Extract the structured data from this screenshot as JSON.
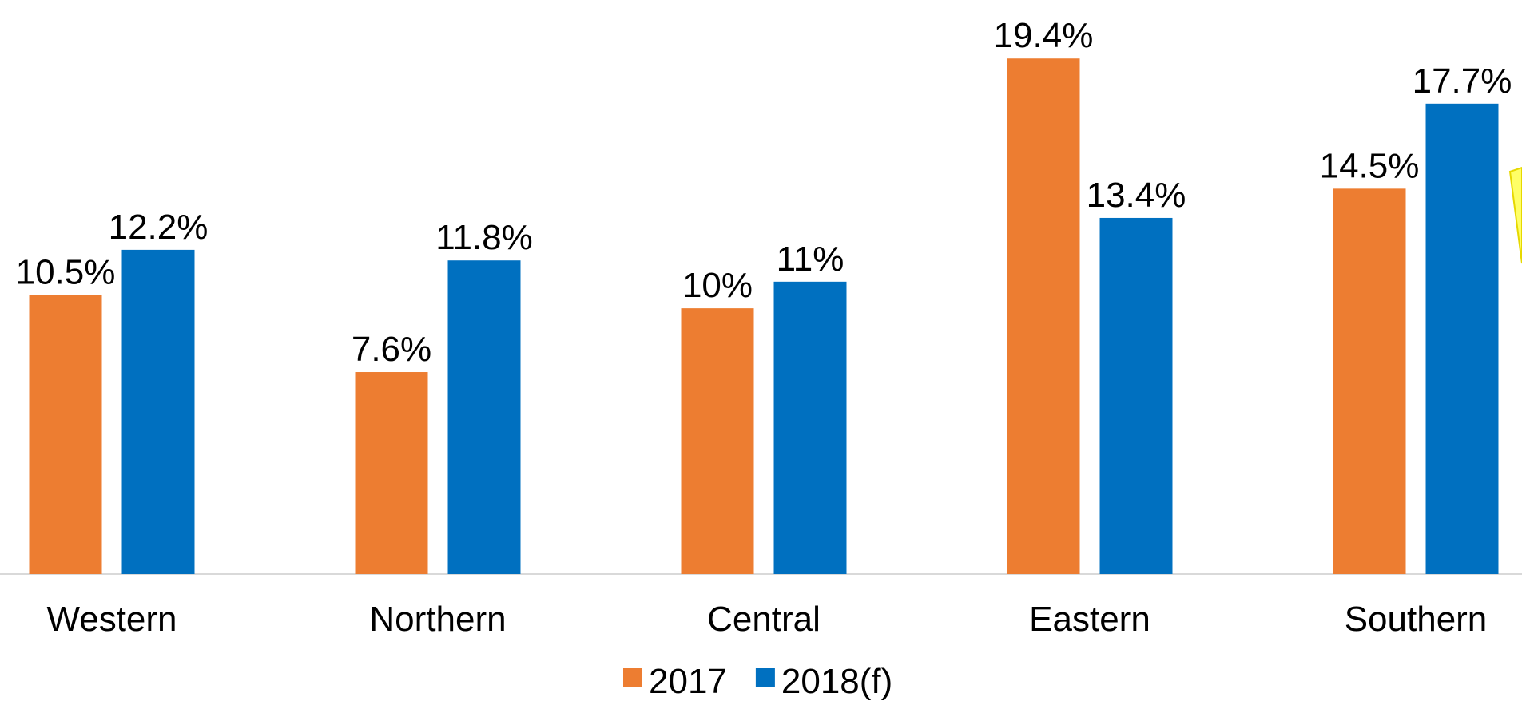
{
  "chart_data": {
    "type": "bar",
    "categories": [
      "Western",
      "Northern",
      "Central",
      "Eastern",
      "Southern"
    ],
    "series": [
      {
        "name": "2017",
        "color": "#ED7D31",
        "values": [
          10.5,
          7.6,
          10,
          19.4,
          14.5
        ],
        "value_labels": [
          "10.5%",
          "7.6%",
          "10%",
          "19.4%",
          "14.5%"
        ]
      },
      {
        "name": "2018(f)",
        "color": "#0070C0",
        "values": [
          12.2,
          11.8,
          11,
          13.4,
          17.7
        ],
        "value_labels": [
          "12.2%",
          "11.8%",
          "11%",
          "13.4%",
          "17.7%"
        ]
      }
    ],
    "ylim": [
      0,
      21.6
    ]
  }
}
